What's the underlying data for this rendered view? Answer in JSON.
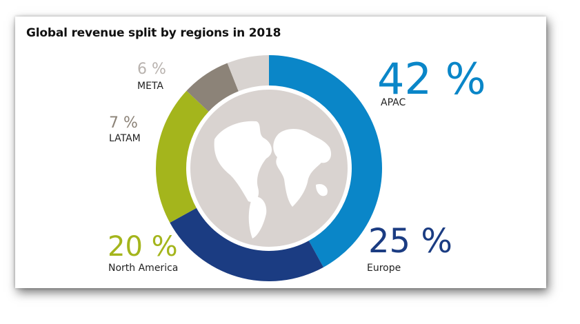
{
  "chart_data": {
    "type": "pie",
    "variant": "donut",
    "title": "Global revenue split by regions in 2018",
    "categories": [
      "APAC",
      "Europe",
      "North America",
      "LATAM",
      "META"
    ],
    "values": [
      42,
      25,
      20,
      7,
      6
    ],
    "value_labels": [
      "42 %",
      "25 %",
      "20 %",
      "7 %",
      "6 %"
    ],
    "unit": "%",
    "colors": [
      "#0a86c8",
      "#1b3c82",
      "#a4b51c",
      "#8c8378",
      "#d8d3d0"
    ],
    "label_colors": [
      "#0a86c8",
      "#1b3c82",
      "#a4b51c",
      "#8c8378",
      "#b8b2ae"
    ],
    "center_graphic": "globe-icon",
    "globe_color": "#d9d3d0"
  }
}
